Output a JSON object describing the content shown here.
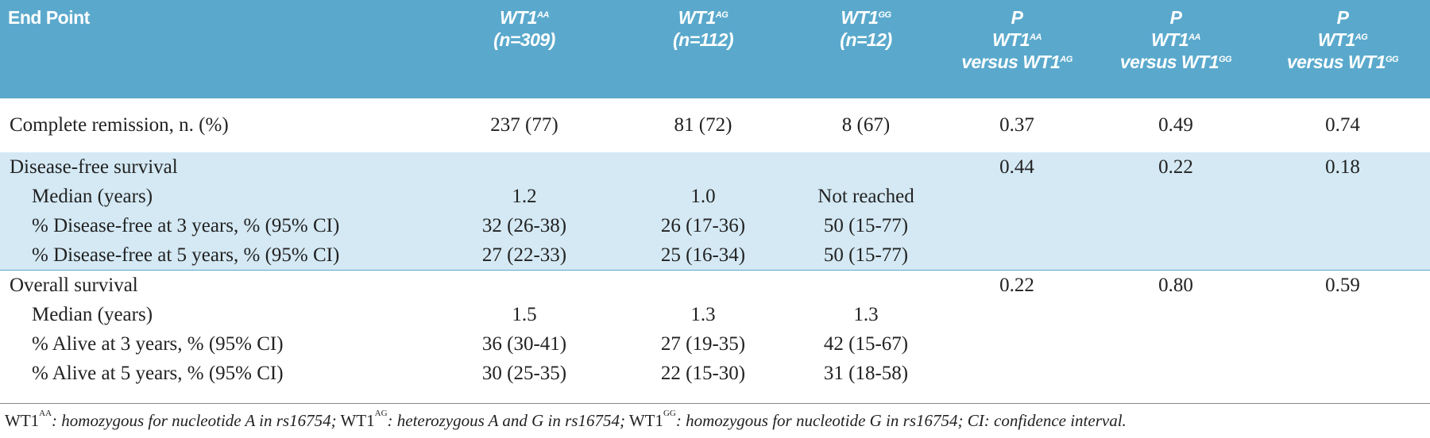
{
  "table": {
    "header": [
      [
        [
          {
            "text": "End Point"
          }
        ]
      ],
      [
        [
          {
            "text": "WT1"
          },
          {
            "sup": "AA"
          }
        ],
        [
          {
            "text": "(n=309)"
          }
        ]
      ],
      [
        [
          {
            "text": "WT1"
          },
          {
            "sup": "AG"
          }
        ],
        [
          {
            "text": "(n=112)"
          }
        ]
      ],
      [
        [
          {
            "text": "WT1"
          },
          {
            "sup": "GG"
          }
        ],
        [
          {
            "text": "(n=12)"
          }
        ]
      ],
      [
        [
          {
            "text": "P"
          }
        ],
        [
          {
            "text": "WT1"
          },
          {
            "sup": "AA"
          }
        ],
        [
          {
            "text": "versus WT1"
          },
          {
            "sup": "AG"
          }
        ]
      ],
      [
        [
          {
            "text": "P"
          }
        ],
        [
          {
            "text": "WT1"
          },
          {
            "sup": "AA"
          }
        ],
        [
          {
            "text": "versus WT1"
          },
          {
            "sup": "GG"
          }
        ]
      ],
      [
        [
          {
            "text": "P"
          }
        ],
        [
          {
            "text": "WT1"
          },
          {
            "sup": "AG"
          }
        ],
        [
          {
            "text": "versus WT1"
          },
          {
            "sup": "GG"
          }
        ]
      ]
    ],
    "sections": [
      {
        "rows": [
          [
            "Complete remission, n. (%)",
            "237 (77)",
            "81 (72)",
            "8 (67)",
            "0.37",
            "0.49",
            "0.74"
          ]
        ]
      },
      {
        "rows": [
          [
            "Disease-free survival",
            null,
            null,
            null,
            "0.44",
            "0.22",
            "0.18"
          ],
          [
            "Median (years)",
            "1.2",
            "1.0",
            "Not reached",
            null,
            null,
            null
          ],
          [
            "% Disease-free at 3 years, % (95% CI)",
            "32 (26-38)",
            "26 (17-36)",
            "50 (15-77)",
            null,
            null,
            null
          ],
          [
            "% Disease-free at 5 years, % (95% CI)",
            "27 (22-33)",
            "25 (16-34)",
            "50 (15-77)",
            null,
            null,
            null
          ]
        ]
      },
      {
        "rows": [
          [
            "Overall survival",
            null,
            null,
            null,
            "0.22",
            "0.80",
            "0.59"
          ],
          [
            "Median (years)",
            "1.5",
            "1.3",
            "1.3",
            null,
            null,
            null
          ],
          [
            "% Alive at 3 years, % (95% CI)",
            "36 (30-41)",
            "27 (19-35)",
            "42 (15-67)",
            null,
            null,
            null
          ],
          [
            "% Alive at 5 years, % (95% CI)",
            "30 (25-35)",
            "22 (15-30)",
            "31 (18-58)",
            null,
            null,
            null
          ]
        ]
      }
    ]
  },
  "footnote": [
    {
      "text": "WT1"
    },
    {
      "sup": "AA"
    },
    {
      "em": ": homozygous for nucleotide A in rs16754;"
    },
    {
      "text": " WT1"
    },
    {
      "sup": "AG"
    },
    {
      "em": ": heterozygous A and G in rs16754;"
    },
    {
      "text": " WT1"
    },
    {
      "sup": "GG"
    },
    {
      "em": ": homozygous for nucleotide G in rs16754; CI: confidence interval."
    }
  ]
}
